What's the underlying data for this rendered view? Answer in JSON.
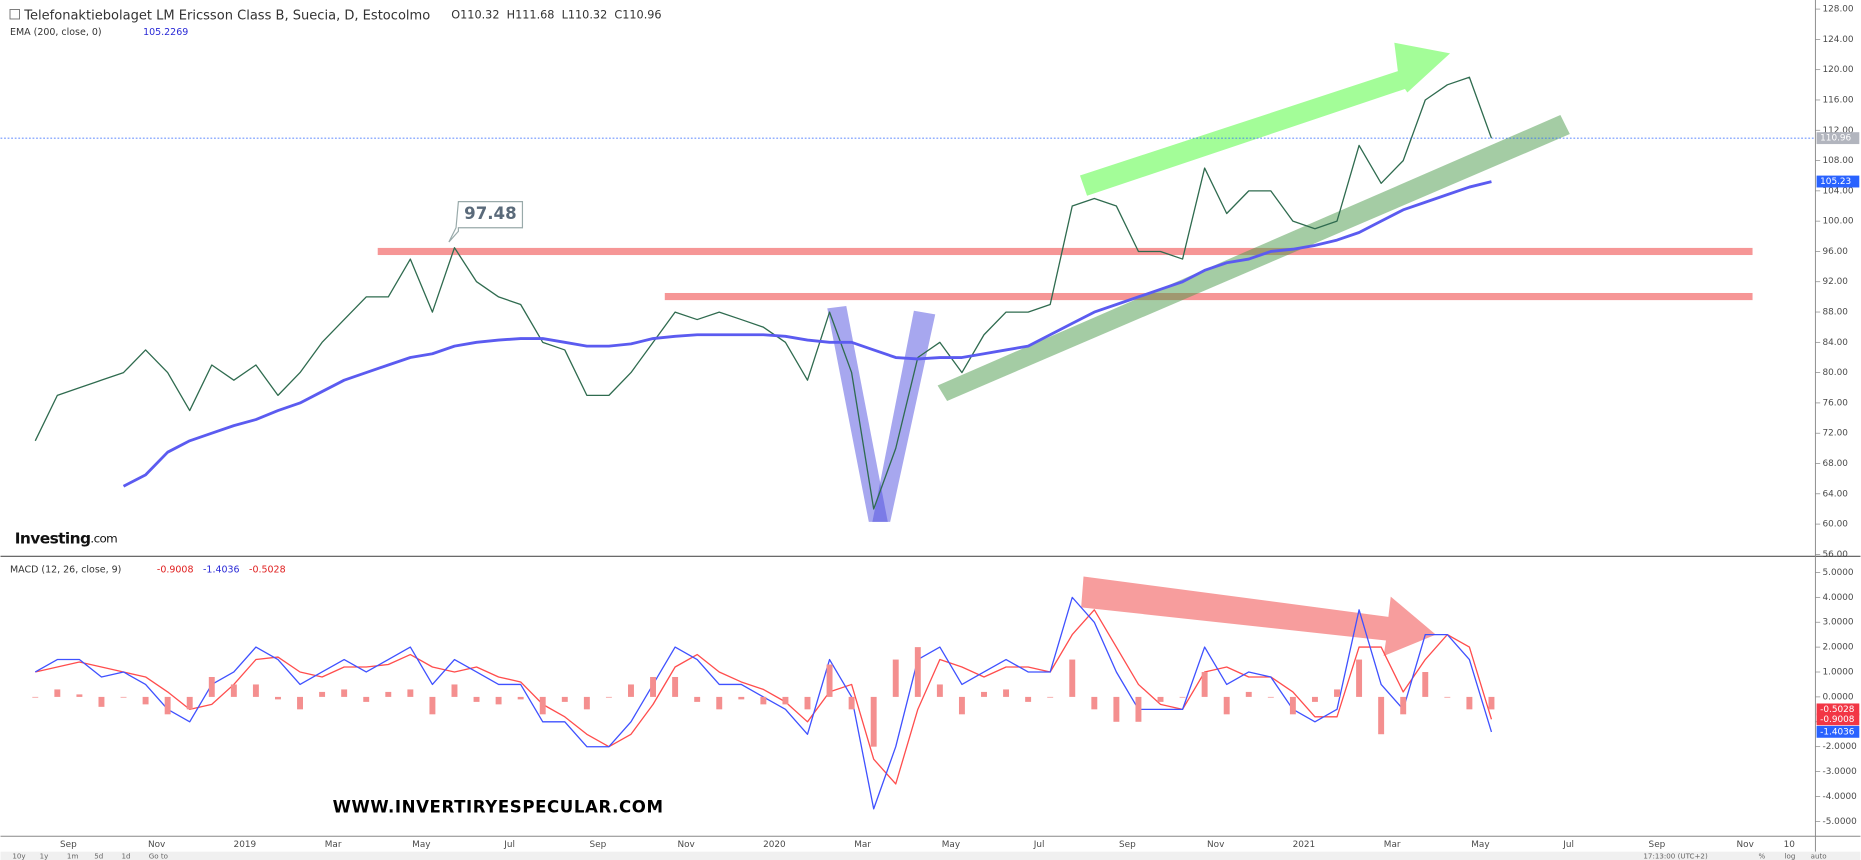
{
  "header": {
    "title": "Telefonaktiebolaget LM Ericsson Class B, Suecia, D, Estocolmo",
    "ohlc": [
      {
        "name": "O",
        "value": 110.32
      },
      {
        "name": "H",
        "value": 111.68
      },
      {
        "name": "L",
        "value": 110.32
      },
      {
        "name": "C",
        "value": 110.96
      }
    ]
  },
  "annotation": "97.48",
  "logo": {
    "main": "Investing",
    "suffix": ".com"
  },
  "watermark": "WWW.INVERTIRYESPECULAR.COM",
  "toolbar": [
    "10y",
    "1y",
    "1m",
    "5d",
    "1d",
    "Go to"
  ],
  "status": [
    "17:13:00 (UTC+2)",
    "%",
    "log",
    "auto"
  ],
  "chart_data": [
    {
      "type": "line",
      "categories": [
        null,
        null,
        "Sep",
        null,
        null,
        null,
        "Nov",
        null,
        null,
        null,
        "2019",
        null,
        null,
        null,
        "Mar",
        null,
        null,
        null,
        "May",
        null,
        null,
        null,
        "Jul",
        null,
        null,
        null,
        "Sep",
        null,
        null,
        null,
        "Nov",
        null,
        null,
        null,
        "2020",
        null,
        null,
        null,
        "Mar",
        null,
        null,
        null,
        "May",
        null,
        null,
        null,
        "Jul",
        null,
        null,
        null,
        "Sep",
        null,
        null,
        null,
        "Nov",
        null,
        null,
        null,
        "2021",
        null,
        null,
        null,
        "Mar",
        null,
        null,
        null,
        "May",
        null,
        null,
        null,
        "Jul",
        null,
        null,
        null,
        "Sep",
        null,
        null,
        null,
        "Nov",
        null,
        "10",
        null
      ],
      "ylim": [
        55.9,
        129.2
      ],
      "yticks": [
        {
          "value": 56,
          "label": "56.00"
        },
        {
          "value": 60,
          "label": "60.00"
        },
        {
          "value": 64,
          "label": "64.00"
        },
        {
          "value": 68,
          "label": "68.00"
        },
        {
          "value": 72,
          "label": "72.00"
        },
        {
          "value": 76,
          "label": "76.00"
        },
        {
          "value": 80,
          "label": "80.00"
        },
        {
          "value": 84,
          "label": "84.00"
        },
        {
          "value": 88,
          "label": "88.00"
        },
        {
          "value": 92,
          "label": "92.00"
        },
        {
          "value": 96,
          "label": "96.00"
        },
        {
          "value": 100,
          "label": "100.00"
        },
        {
          "value": 104,
          "label": "104.00"
        },
        {
          "value": 108,
          "label": "108.00"
        },
        {
          "value": 112,
          "label": "112.00"
        },
        {
          "value": 116,
          "label": "116.00"
        },
        {
          "value": 120,
          "label": "120.00"
        },
        {
          "value": 124,
          "label": "124.00"
        },
        {
          "value": 128,
          "label": "128.00"
        }
      ],
      "series": [
        {
          "style": "line",
          "color": "#2f6b4f",
          "values": [
            71,
            77,
            78,
            79,
            80,
            83,
            80,
            75,
            81,
            79,
            81,
            77,
            80,
            84,
            87,
            90,
            90,
            95,
            88,
            96.5,
            92,
            90,
            89,
            84,
            83,
            77,
            77,
            80,
            84,
            88,
            87,
            88,
            87,
            86,
            84,
            79,
            88,
            80,
            62,
            70,
            82,
            84,
            80,
            85,
            88,
            88,
            89,
            102,
            103,
            102,
            96,
            96,
            95,
            107,
            101,
            104,
            104,
            100,
            99,
            100,
            110,
            105,
            108,
            116,
            118,
            119,
            110.96,
            null,
            null,
            null,
            null,
            null,
            null,
            null,
            null,
            null,
            null,
            null,
            null,
            null,
            null,
            null
          ]
        },
        {
          "name": "EMA (200, close, 0)",
          "style": "line",
          "color": "#5b5bf0",
          "values": [
            null,
            null,
            null,
            null,
            65,
            66.5,
            69.5,
            71,
            72,
            73,
            73.8,
            75,
            76,
            77.5,
            79,
            80,
            81,
            82,
            82.5,
            83.5,
            84,
            84.3,
            84.5,
            84.5,
            84,
            83.5,
            83.5,
            83.8,
            84.5,
            84.8,
            85,
            85,
            85,
            85,
            84.8,
            84.3,
            84,
            84,
            83,
            82,
            81.8,
            82,
            82,
            82.5,
            83,
            83.5,
            85,
            86.5,
            88,
            89,
            90,
            91,
            92,
            93.5,
            94.5,
            95,
            96,
            96.3,
            96.8,
            97.5,
            98.5,
            100,
            101.5,
            102.5,
            103.5,
            104.5,
            105.2269,
            null,
            null,
            null,
            null,
            null,
            null,
            null,
            null,
            null,
            null,
            null,
            null,
            null,
            null,
            null
          ]
        }
      ],
      "markers": [
        {
          "value": 110.96,
          "color": "#b2b5be"
        },
        {
          "value": 105.23,
          "color": "#2962ff"
        }
      ]
    },
    {
      "type": "macd",
      "title": "MACD (12, 26, close, 9)",
      "ylim": [
        -5.6,
        5.6
      ],
      "yticks": [
        {
          "value": -5,
          "label": "-5.0000"
        },
        {
          "value": -4,
          "label": "-4.0000"
        },
        {
          "value": -3,
          "label": "-3.0000"
        },
        {
          "value": -2,
          "label": "-2.0000"
        },
        {
          "value": -1,
          "label": "-1.0000"
        },
        {
          "value": 0,
          "label": "0.0000"
        },
        {
          "value": 1,
          "label": "1.0000"
        },
        {
          "value": 2,
          "label": "2.0000"
        },
        {
          "value": 3,
          "label": "3.0000"
        },
        {
          "value": 4,
          "label": "4.0000"
        },
        {
          "value": 5,
          "label": "5.0000"
        }
      ],
      "series": [
        {
          "style": "line",
          "color": "#ff4d4d",
          "values": [
            1.0,
            1.2,
            1.4,
            1.2,
            1.0,
            0.8,
            0.2,
            -0.5,
            -0.3,
            0.5,
            1.5,
            1.6,
            1.0,
            0.8,
            1.2,
            1.2,
            1.3,
            1.7,
            1.2,
            1.0,
            1.2,
            0.8,
            0.6,
            -0.3,
            -0.8,
            -1.5,
            -2.0,
            -1.5,
            -0.3,
            1.2,
            1.7,
            1.0,
            0.6,
            0.3,
            -0.2,
            -1.0,
            0.2,
            0.5,
            -2.5,
            -3.5,
            -0.5,
            1.5,
            1.2,
            0.8,
            1.2,
            1.2,
            1.0,
            2.5,
            3.5,
            2.0,
            0.5,
            -0.3,
            -0.5,
            1.0,
            1.2,
            0.8,
            0.8,
            0.2,
            -0.8,
            -0.8,
            2.0,
            2.0,
            0.2,
            1.5,
            2.5,
            2.0,
            -0.9008,
            null,
            null,
            null,
            null,
            null,
            null,
            null,
            null,
            null,
            null,
            null,
            null,
            null,
            null,
            null
          ]
        },
        {
          "style": "line",
          "color": "#3f51ff",
          "values": [
            1,
            1.5,
            1.5,
            0.8,
            1.0,
            0.5,
            -0.5,
            -1.0,
            0.5,
            1.0,
            2.0,
            1.5,
            0.5,
            1.0,
            1.5,
            1.0,
            1.5,
            2.0,
            0.5,
            1.5,
            1.0,
            0.5,
            0.5,
            -1.0,
            -1.0,
            -2.0,
            -2.0,
            -1.0,
            0.5,
            2.0,
            1.5,
            0.5,
            0.5,
            0,
            -0.5,
            -1.5,
            1.5,
            0,
            -4.5,
            -2.0,
            1.5,
            2.0,
            0.5,
            1.0,
            1.5,
            1.0,
            1.0,
            4.0,
            3.0,
            1.0,
            -0.5,
            -0.5,
            -0.5,
            2.0,
            0.5,
            1.0,
            0.8,
            -0.5,
            -1.0,
            -0.5,
            3.5,
            0.5,
            -0.5,
            2.5,
            2.5,
            1.5,
            -1.4036,
            null,
            null,
            null,
            null,
            null,
            null,
            null,
            null,
            null,
            null,
            null,
            null,
            null,
            null,
            null
          ]
        },
        {
          "style": "histogram",
          "color": "#f48f8f",
          "values": [
            0,
            0.3,
            0.1,
            -0.4,
            0,
            -0.3,
            -0.7,
            -0.5,
            0.8,
            0.5,
            0.5,
            -0.1,
            -0.5,
            0.2,
            0.3,
            -0.2,
            0.2,
            0.3,
            -0.7,
            0.5,
            -0.2,
            -0.3,
            -0.1,
            -0.7,
            -0.2,
            -0.5,
            0,
            0.5,
            0.8,
            0.8,
            -0.2,
            -0.5,
            -0.1,
            -0.3,
            -0.3,
            -0.5,
            1.3,
            -0.5,
            -2.0,
            1.5,
            2.0,
            0.5,
            -0.7,
            0.2,
            0.3,
            -0.2,
            0,
            1.5,
            -0.5,
            -1.0,
            -1.0,
            -0.2,
            0,
            1.0,
            -0.7,
            0.2,
            0,
            -0.7,
            -0.2,
            0.3,
            1.5,
            -1.5,
            -0.7,
            1.0,
            0,
            -0.5,
            -0.5028,
            null,
            null,
            null,
            null,
            null,
            null,
            null,
            null,
            null,
            null,
            null,
            null,
            null,
            null,
            null
          ]
        }
      ],
      "markers": [
        {
          "value": -0.5028,
          "color": "#f23645"
        },
        {
          "value": -0.9008,
          "color": "#f23645"
        },
        {
          "value": -1.4036,
          "color": "#2962ff"
        }
      ]
    }
  ]
}
